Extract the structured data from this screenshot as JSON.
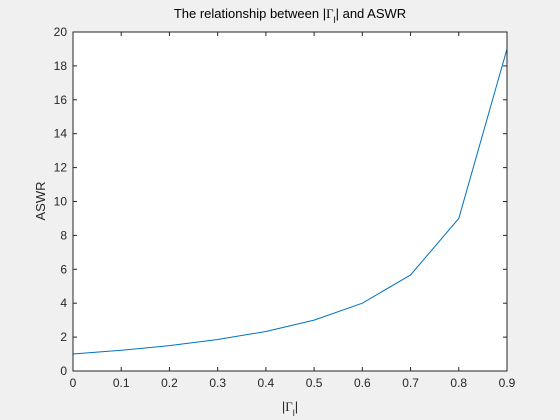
{
  "chart_data": {
    "type": "line",
    "title": {
      "prefix": "The relationship between |",
      "symbol": "Γ",
      "subscript": "l",
      "suffix": "| and ASWR"
    },
    "xlabel": {
      "prefix": "|",
      "symbol": "Γ",
      "subscript": "l",
      "suffix": "|"
    },
    "ylabel": "ASWR",
    "xlim": [
      0,
      0.9
    ],
    "ylim": [
      0,
      20
    ],
    "xticks": [
      "0",
      "0.1",
      "0.2",
      "0.3",
      "0.4",
      "0.5",
      "0.6",
      "0.7",
      "0.8",
      "0.9"
    ],
    "yticks": [
      "0",
      "2",
      "4",
      "6",
      "8",
      "10",
      "12",
      "14",
      "16",
      "18",
      "20"
    ],
    "grid": false,
    "line_color": "#0072bd",
    "series": [
      {
        "x": [
          0,
          0.1,
          0.2,
          0.3,
          0.4,
          0.5,
          0.6,
          0.7,
          0.8,
          0.9
        ],
        "y": [
          1,
          1.222,
          1.5,
          1.857,
          2.333,
          3,
          4,
          5.667,
          9,
          19
        ]
      }
    ]
  }
}
